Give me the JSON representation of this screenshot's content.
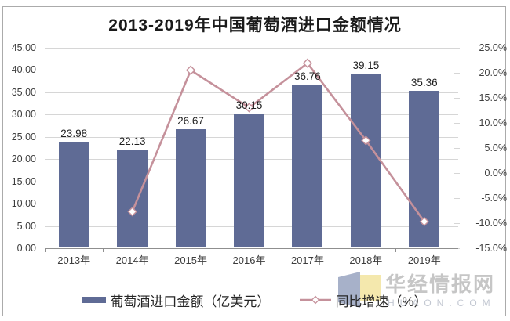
{
  "title": "2013-2019年中国葡萄酒进口金额情况",
  "legend": {
    "items": [
      {
        "label": "葡萄酒进口金额（亿美元）",
        "type": "bar"
      },
      {
        "label": "同比增速（%）",
        "type": "line"
      }
    ]
  },
  "watermark": {
    "name": "华经情报网",
    "domain": "HUAON.COM",
    "logo": "huaon-open-book-logo"
  },
  "colors": {
    "bar": "#5F6B95",
    "line": "#C5919B",
    "marker_fill": "#FFFFFF",
    "grid": "#D6D6D6",
    "axis": "#8F8F8F",
    "text": "#3D3D3D",
    "watermark_text": "#C6C6C6",
    "watermark_domain": "#C3C8D2",
    "logo_blue": "#98A3BF",
    "logo_yellow": "#F3E5A4"
  },
  "chart_data": {
    "type": "bar",
    "subtype": "bar-line-combo",
    "title": "2013-2019年中国葡萄酒进口金额情况",
    "categories": [
      "2013年",
      "2014年",
      "2015年",
      "2016年",
      "2017年",
      "2018年",
      "2019年"
    ],
    "series": [
      {
        "name": "葡萄酒进口金额（亿美元）",
        "type": "bar",
        "axis": "left",
        "values": [
          23.98,
          22.13,
          26.67,
          30.15,
          36.76,
          39.15,
          35.36
        ],
        "data_labels_visible": true
      },
      {
        "name": "同比增速（%）",
        "type": "line",
        "axis": "right",
        "values": [
          null,
          -7.71,
          20.52,
          13.05,
          21.92,
          6.5,
          -9.68
        ],
        "data_labels_visible": false
      }
    ],
    "left_axis": {
      "min": 0,
      "max": 45,
      "step": 5,
      "decimals": 2,
      "suffix": ""
    },
    "right_axis": {
      "min": -15,
      "max": 25,
      "step": 5,
      "decimals": 1,
      "suffix": "%"
    },
    "grid": true,
    "legend_position": "bottom"
  }
}
